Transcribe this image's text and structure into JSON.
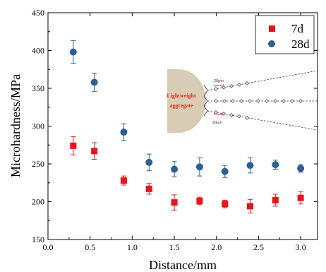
{
  "chart_data": {
    "type": "scatter",
    "xlabel": "Distance/mm",
    "ylabel": "Microhardness/MPa",
    "xlim": [
      0.0,
      3.2
    ],
    "ylim": [
      150,
      450
    ],
    "xticks": [
      0.0,
      0.5,
      1.0,
      1.5,
      2.0,
      2.5,
      3.0
    ],
    "yticks": [
      150,
      200,
      250,
      300,
      350,
      400,
      450
    ],
    "xtick_labels": [
      "0.0",
      "0.5",
      "1.0",
      "1.5",
      "2.0",
      "2.5",
      "3.0"
    ],
    "ytick_labels": [
      "150",
      "200",
      "250",
      "300",
      "350",
      "400",
      "450"
    ],
    "legend_position": "top-right",
    "series": [
      {
        "name": "7d",
        "marker": "square",
        "color": "#e8141b",
        "points": [
          {
            "x": 0.3,
            "y": 274,
            "err": 12
          },
          {
            "x": 0.55,
            "y": 267,
            "err": 11
          },
          {
            "x": 0.9,
            "y": 228,
            "err": 6
          },
          {
            "x": 1.2,
            "y": 217,
            "err": 7
          },
          {
            "x": 1.5,
            "y": 199,
            "err": 10
          },
          {
            "x": 1.8,
            "y": 201,
            "err": 5
          },
          {
            "x": 2.1,
            "y": 197,
            "err": 5
          },
          {
            "x": 2.4,
            "y": 194,
            "err": 9
          },
          {
            "x": 2.7,
            "y": 202,
            "err": 8
          },
          {
            "x": 3.0,
            "y": 205,
            "err": 8
          }
        ]
      },
      {
        "name": "28d",
        "marker": "circle",
        "color": "#2d5f93",
        "points": [
          {
            "x": 0.3,
            "y": 398,
            "err": 15
          },
          {
            "x": 0.55,
            "y": 358,
            "err": 12
          },
          {
            "x": 0.9,
            "y": 292,
            "err": 11
          },
          {
            "x": 1.2,
            "y": 252,
            "err": 11
          },
          {
            "x": 1.5,
            "y": 243,
            "err": 10
          },
          {
            "x": 1.8,
            "y": 246,
            "err": 12
          },
          {
            "x": 2.1,
            "y": 240,
            "err": 8
          },
          {
            "x": 2.4,
            "y": 248,
            "err": 10
          },
          {
            "x": 2.7,
            "y": 249,
            "err": 6
          },
          {
            "x": 3.0,
            "y": 244,
            "err": 5
          }
        ]
      }
    ],
    "inset": {
      "aggregate_label_line1": "Lightweight",
      "aggregate_label_line2": "aggregate",
      "scale_label_top": "20μm",
      "scale_label_bottom": "20μm",
      "aggregate_color": "#d8cdb4",
      "arrow_color": "#e0301e"
    }
  }
}
